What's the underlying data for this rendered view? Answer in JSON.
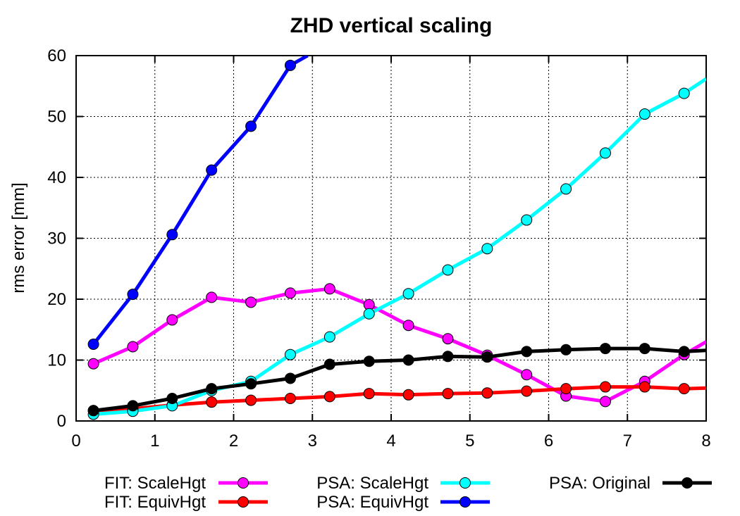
{
  "chart_data": {
    "type": "line",
    "title": "ZHD vertical scaling",
    "xlabel": "",
    "ylabel": "rms error [mm]",
    "xlim": [
      0,
      8
    ],
    "ylim": [
      0,
      60
    ],
    "xticks": [
      0,
      1,
      2,
      3,
      4,
      5,
      6,
      7,
      8
    ],
    "yticks": [
      0,
      10,
      20,
      30,
      40,
      50,
      60
    ],
    "grid": true,
    "legend_position": "bottom",
    "series": [
      {
        "name": "FIT: ScaleHgt",
        "color": "#ff00ff",
        "x": [
          0.22,
          0.72,
          1.22,
          1.72,
          2.22,
          2.72,
          3.22,
          3.72,
          4.22,
          4.72,
          5.22,
          5.72,
          6.22,
          6.72,
          7.22,
          7.72,
          8.0
        ],
        "y": [
          9.4,
          12.2,
          16.6,
          20.3,
          19.5,
          21.0,
          21.7,
          19.1,
          15.7,
          13.5,
          10.8,
          7.6,
          4.1,
          3.2,
          6.5,
          10.9,
          13.0
        ]
      },
      {
        "name": "FIT: EquivHgt",
        "color": "#ff0000",
        "x": [
          0.22,
          0.72,
          1.22,
          1.72,
          2.22,
          2.72,
          3.22,
          3.72,
          4.22,
          4.72,
          5.22,
          5.72,
          6.22,
          6.72,
          7.22,
          7.72,
          8.0
        ],
        "y": [
          1.7,
          2.0,
          2.6,
          3.1,
          3.4,
          3.7,
          4.0,
          4.5,
          4.3,
          4.5,
          4.6,
          4.9,
          5.3,
          5.6,
          5.6,
          5.3,
          5.4
        ]
      },
      {
        "name": "PSA: ScaleHgt",
        "color": "#00ffff",
        "x": [
          0.22,
          0.72,
          1.22,
          1.72,
          2.22,
          2.72,
          3.22,
          3.72,
          4.22,
          4.72,
          5.22,
          5.72,
          6.22,
          6.72,
          7.22,
          7.72,
          8.0
        ],
        "y": [
          1.1,
          1.6,
          2.5,
          5.0,
          6.5,
          10.9,
          13.8,
          17.6,
          20.9,
          24.8,
          28.3,
          33.0,
          38.1,
          44.0,
          50.4,
          53.8,
          56.2
        ]
      },
      {
        "name": "PSA: EquivHgt",
        "color": "#0000ff",
        "x": [
          0.22,
          0.72,
          1.22,
          1.72,
          2.22,
          2.72,
          2.94
        ],
        "y": [
          12.6,
          20.8,
          30.6,
          41.2,
          48.4,
          58.4,
          60.0
        ]
      },
      {
        "name": "PSA: Original",
        "color": "#000000",
        "x": [
          0.22,
          0.72,
          1.22,
          1.72,
          2.22,
          2.72,
          3.22,
          3.72,
          4.22,
          4.72,
          5.22,
          5.72,
          6.22,
          6.72,
          7.22,
          7.72,
          8.0
        ],
        "y": [
          1.7,
          2.5,
          3.7,
          5.3,
          6.1,
          7.0,
          9.3,
          9.8,
          10.0,
          10.6,
          10.5,
          11.4,
          11.7,
          11.9,
          11.9,
          11.4,
          11.6
        ]
      }
    ]
  }
}
